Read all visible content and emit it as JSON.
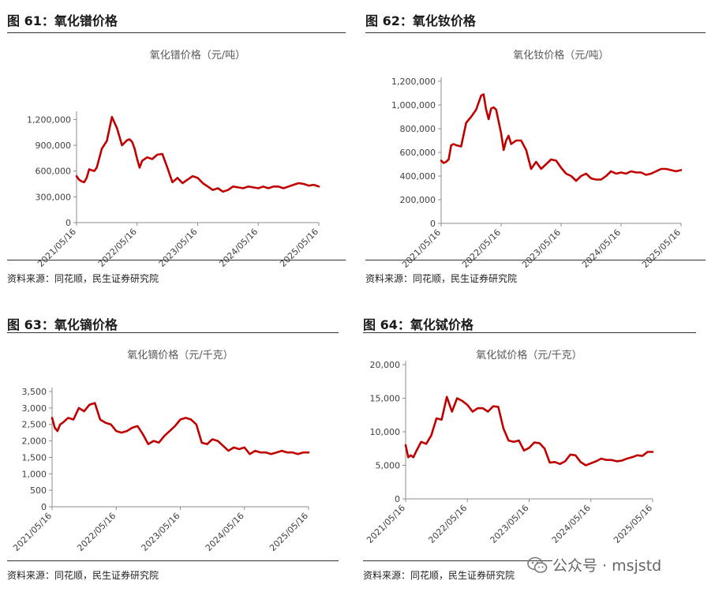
{
  "charts": [
    {
      "figure_label": "图 61：氧化镨价格",
      "source": "资料来源：同花顺，民生证券研究院",
      "color": "#c00000"
    },
    {
      "figure_label": "图 62：氧化钕价格",
      "source": "资料来源：同花顺，民生证券研究院",
      "color": "#c00000"
    },
    {
      "figure_label": "图 63：氧化镝价格",
      "source": "资料来源：同花顺，民生证券研究院",
      "color": "#c00000"
    },
    {
      "figure_label": "图 64：氧化铽价格",
      "source": "资料来源：同花顺，民生证券研究院",
      "color": "#c00000"
    }
  ],
  "watermark": {
    "text": "公众号 · msjstd",
    "icon": "wechat-icon"
  },
  "chart_data": [
    {
      "type": "line",
      "title": "氧化镨价格（元/吨）",
      "xlabel": "",
      "ylabel": "",
      "x_ticks": [
        "2021/05/16",
        "2022/05/16",
        "2023/05/16",
        "2024/05/16",
        "2025/05/16"
      ],
      "y_ticks": [
        "0",
        "300,000",
        "600,000",
        "900,000",
        "1,200,000"
      ],
      "ylim": [
        0,
        1250000
      ],
      "xlim": [
        0,
        48
      ],
      "grid": false,
      "legend": "none",
      "series": [
        {
          "x": [
            0,
            0.5,
            1,
            1.5,
            2,
            2.5,
            3,
            3.5,
            4,
            5,
            6,
            7,
            8,
            9,
            10,
            10.5,
            11,
            11.5,
            12,
            12.5,
            13,
            14,
            15,
            16,
            17,
            18,
            19,
            20,
            21,
            22,
            23,
            24,
            25,
            26,
            27,
            28,
            29,
            30,
            31,
            32,
            33,
            34,
            35,
            36,
            37,
            38,
            39,
            40,
            41,
            42,
            43,
            44,
            45,
            46,
            47,
            48
          ],
          "y": [
            540000,
            500000,
            480000,
            470000,
            520000,
            620000,
            610000,
            600000,
            640000,
            860000,
            950000,
            1230000,
            1100000,
            900000,
            960000,
            970000,
            940000,
            860000,
            740000,
            640000,
            720000,
            760000,
            740000,
            790000,
            800000,
            640000,
            470000,
            520000,
            460000,
            500000,
            540000,
            520000,
            460000,
            420000,
            380000,
            400000,
            360000,
            380000,
            420000,
            410000,
            400000,
            420000,
            410000,
            400000,
            420000,
            400000,
            420000,
            420000,
            400000,
            420000,
            440000,
            460000,
            450000,
            430000,
            440000,
            420000
          ]
        }
      ]
    },
    {
      "type": "line",
      "title": "氧化钕价格（元/吨）",
      "xlabel": "",
      "ylabel": "",
      "x_ticks": [
        "2021/05/16",
        "2022/05/16",
        "2023/05/16",
        "2024/05/16",
        "2025/05/16"
      ],
      "y_ticks": [
        "0",
        "200,000",
        "400,000",
        "600,000",
        "800,000",
        "1,000,000",
        "1,200,000"
      ],
      "ylim": [
        0,
        1200000
      ],
      "xlim": [
        0,
        48
      ],
      "grid": false,
      "legend": "none",
      "series": [
        {
          "x": [
            0,
            0.5,
            1,
            1.5,
            2,
            2.5,
            3,
            4,
            5,
            6,
            7,
            8,
            8.5,
            9,
            9.5,
            10,
            10.5,
            11,
            12,
            12.5,
            13,
            13.5,
            14,
            15,
            16,
            17,
            18,
            19,
            20,
            21,
            22,
            23,
            24,
            25,
            26,
            27,
            28,
            29,
            30,
            31,
            32,
            33,
            34,
            35,
            36,
            37,
            38,
            39,
            40,
            41,
            42,
            43,
            44,
            45,
            46,
            47,
            48
          ],
          "y": [
            530000,
            510000,
            520000,
            540000,
            660000,
            670000,
            660000,
            650000,
            850000,
            900000,
            960000,
            1080000,
            1090000,
            960000,
            880000,
            970000,
            980000,
            960000,
            760000,
            620000,
            700000,
            740000,
            670000,
            700000,
            700000,
            620000,
            460000,
            520000,
            460000,
            500000,
            540000,
            530000,
            470000,
            420000,
            400000,
            360000,
            400000,
            420000,
            380000,
            370000,
            370000,
            400000,
            440000,
            420000,
            430000,
            420000,
            440000,
            430000,
            430000,
            410000,
            420000,
            440000,
            460000,
            460000,
            450000,
            440000,
            450000
          ]
        }
      ]
    },
    {
      "type": "line",
      "title": "氧化镝价格（元/千克）",
      "xlabel": "",
      "ylabel": "",
      "x_ticks": [
        "2021/05/16",
        "2022/05/16",
        "2023/05/16",
        "2024/05/16",
        "2025/05/16"
      ],
      "y_ticks": [
        "0",
        "500",
        "1,000",
        "1,500",
        "2,000",
        "2,500",
        "3,000",
        "3,500"
      ],
      "ylim": [
        0,
        3500
      ],
      "xlim": [
        0,
        48
      ],
      "grid": false,
      "legend": "none",
      "series": [
        {
          "x": [
            0,
            0.5,
            1,
            1.5,
            2,
            3,
            4,
            5,
            6,
            7,
            8,
            9,
            10,
            11,
            12,
            13,
            14,
            15,
            16,
            17,
            18,
            19,
            20,
            21,
            22,
            23,
            24,
            25,
            26,
            27,
            28,
            29,
            30,
            31,
            32,
            33,
            34,
            35,
            36,
            37,
            38,
            39,
            40,
            41,
            42,
            43,
            44,
            45,
            46,
            47,
            48
          ],
          "y": [
            2700,
            2400,
            2300,
            2500,
            2550,
            2700,
            2650,
            3000,
            2900,
            3100,
            3150,
            2650,
            2550,
            2500,
            2300,
            2250,
            2300,
            2400,
            2450,
            2200,
            1900,
            2000,
            1950,
            2150,
            2300,
            2450,
            2650,
            2700,
            2650,
            2500,
            1950,
            1900,
            2050,
            2000,
            1850,
            1700,
            1800,
            1750,
            1800,
            1600,
            1700,
            1650,
            1650,
            1600,
            1650,
            1700,
            1650,
            1650,
            1600,
            1650,
            1650
          ]
        }
      ]
    },
    {
      "type": "line",
      "title": "氧化铽价格（元/千克）",
      "xlabel": "",
      "ylabel": "",
      "x_ticks": [
        "2021/05/16",
        "2022/05/16",
        "2023/05/16",
        "2024/05/16",
        "2025/05/16"
      ],
      "y_ticks": [
        "0",
        "5,000",
        "10,000",
        "15,000",
        "20,000"
      ],
      "ylim": [
        0,
        20000
      ],
      "xlim": [
        0,
        48
      ],
      "grid": false,
      "legend": "none",
      "series": [
        {
          "x": [
            0,
            0.5,
            1,
            1.5,
            2,
            3,
            4,
            5,
            6,
            7,
            8,
            9,
            10,
            11,
            12,
            13,
            14,
            15,
            16,
            17,
            18,
            19,
            20,
            21,
            22,
            23,
            24,
            25,
            26,
            27,
            28,
            29,
            30,
            31,
            32,
            33,
            34,
            35,
            36,
            37,
            38,
            39,
            40,
            41,
            42,
            43,
            44,
            45,
            46,
            47,
            48
          ],
          "y": [
            8000,
            6200,
            6500,
            6200,
            7000,
            8500,
            8200,
            9500,
            12000,
            11800,
            15200,
            13000,
            15000,
            14600,
            14000,
            13000,
            13500,
            13500,
            13000,
            13800,
            13700,
            10500,
            8700,
            8500,
            8700,
            7200,
            7600,
            8400,
            8300,
            7500,
            5400,
            5500,
            5200,
            5600,
            6600,
            6500,
            5500,
            5000,
            5300,
            5600,
            6000,
            5800,
            5800,
            5600,
            5700,
            6000,
            6200,
            6500,
            6400,
            7000,
            7000
          ]
        }
      ]
    }
  ]
}
